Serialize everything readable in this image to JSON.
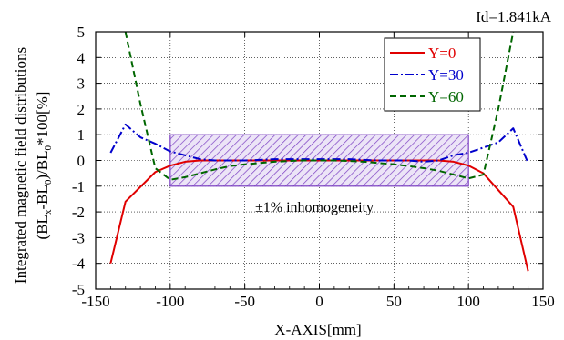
{
  "chart_data": {
    "type": "line",
    "title": "Id=1.841kA",
    "xlabel": "X-AXIS[mm]",
    "ylabel_line1": "Integrated magnetic field distributions",
    "ylabel_line2_parts": [
      "(BL",
      "x",
      "-BL",
      "0",
      ")/BL",
      "0",
      "*100[%]"
    ],
    "xlim": [
      -150,
      150
    ],
    "ylim": [
      -5,
      5
    ],
    "xticks": [
      -150,
      -100,
      -50,
      0,
      50,
      100,
      150
    ],
    "yticks": [
      -5,
      -4,
      -3,
      -2,
      -1,
      0,
      1,
      2,
      3,
      4,
      5
    ],
    "grid": true,
    "legend_position": "top-right",
    "band": {
      "x": [
        -100,
        100
      ],
      "y": [
        -1,
        1
      ],
      "color": "#7b3fc2",
      "label": "±1% inhomogeneity"
    },
    "series": [
      {
        "name": "Y=0",
        "color": "#e00000",
        "dash": "solid",
        "x": [
          -140,
          -130,
          -110,
          -100,
          -90,
          -80,
          -70,
          -60,
          -50,
          -40,
          -30,
          -20,
          -10,
          0,
          10,
          20,
          30,
          40,
          50,
          60,
          70,
          80,
          90,
          100,
          110,
          130,
          140
        ],
        "y": [
          -4.0,
          -1.6,
          -0.45,
          -0.2,
          -0.05,
          0.0,
          0.0,
          0.0,
          0.0,
          0.0,
          0.0,
          0.0,
          0.0,
          0.0,
          0.0,
          0.0,
          0.0,
          0.0,
          0.0,
          0.0,
          0.0,
          0.0,
          -0.05,
          -0.2,
          -0.5,
          -1.8,
          -4.3
        ]
      },
      {
        "name": "Y=30",
        "color": "#0000cc",
        "dash": "dashdot",
        "x": [
          -140,
          -130,
          -120,
          -110,
          -100,
          -90,
          -80,
          -70,
          -60,
          -50,
          -40,
          -30,
          -20,
          -10,
          0,
          10,
          20,
          30,
          40,
          50,
          60,
          70,
          80,
          90,
          100,
          110,
          120,
          130,
          140
        ],
        "y": [
          0.3,
          1.4,
          0.9,
          0.65,
          0.35,
          0.2,
          0.05,
          0.0,
          0.0,
          0.0,
          0.02,
          0.05,
          0.05,
          0.05,
          0.05,
          0.05,
          0.05,
          0.02,
          0.0,
          0.0,
          0.0,
          -0.05,
          0.0,
          0.2,
          0.3,
          0.5,
          0.7,
          1.25,
          -0.1
        ]
      },
      {
        "name": "Y=60",
        "color": "#006600",
        "dash": "dash",
        "x": [
          -130,
          -120,
          -110,
          -100,
          -90,
          -80,
          -70,
          -60,
          -50,
          -40,
          -30,
          -20,
          -10,
          0,
          10,
          20,
          30,
          40,
          50,
          60,
          70,
          80,
          90,
          100,
          110,
          120,
          130
        ],
        "y": [
          5.0,
          2.2,
          -0.3,
          -0.75,
          -0.65,
          -0.5,
          -0.35,
          -0.22,
          -0.15,
          -0.1,
          -0.05,
          -0.02,
          0.0,
          0.0,
          0.0,
          -0.02,
          -0.05,
          -0.1,
          -0.15,
          -0.22,
          -0.3,
          -0.4,
          -0.55,
          -0.7,
          -0.55,
          2.0,
          5.0
        ]
      }
    ]
  }
}
